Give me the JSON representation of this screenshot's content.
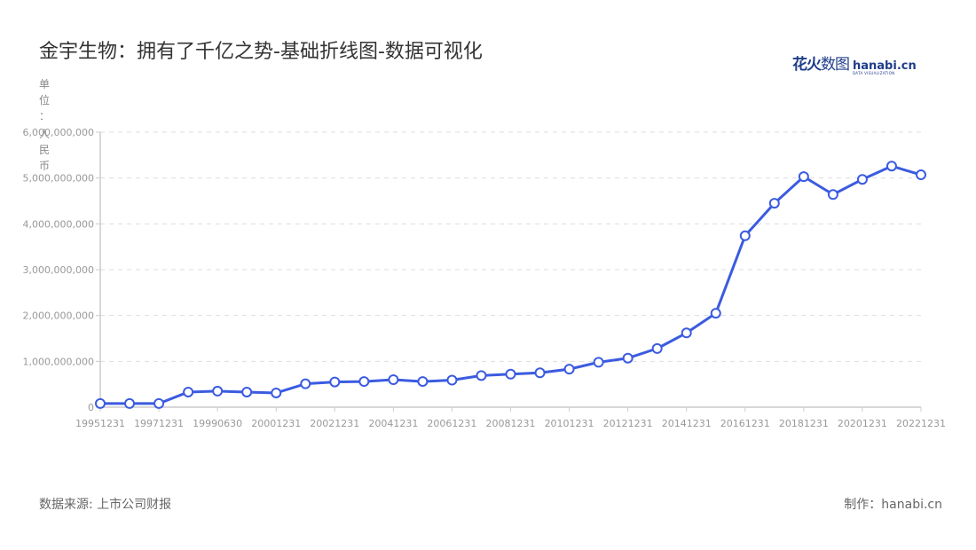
{
  "title": "金宇生物：拥有了千亿之势-基础折线图-数据可视化",
  "logo": {
    "cn_bold": "花火",
    "cn_thin": "数图",
    "en": "hanabi.cn",
    "tagline": "DATA VISUALIZATION"
  },
  "unit_label": [
    "单",
    "位",
    "：",
    "人",
    "民",
    "币"
  ],
  "footer": {
    "source": "数据来源: 上市公司财报",
    "credit": "制作：hanabi.cn"
  },
  "colors": {
    "line": "#3b5be0",
    "grid": "#dddddd",
    "axis": "#cccccc",
    "tick_text": "#999999"
  },
  "chart_data": {
    "type": "line",
    "title": "金宇生物：拥有了千亿之势-基础折线图-数据可视化",
    "xlabel": "",
    "ylabel": "单位：人民币",
    "ylim": [
      0,
      6000000000
    ],
    "yticks": [
      "0",
      "1,000,000,000",
      "2,000,000,000",
      "3,000,000,000",
      "4,000,000,000",
      "5,000,000,000",
      "6,000,000,000"
    ],
    "grid": true,
    "legend": "none",
    "x_tick_labels": [
      "19951231",
      "19971231",
      "19990630",
      "20001231",
      "20021231",
      "20041231",
      "20061231",
      "20081231",
      "20101231",
      "20121231",
      "20141231",
      "20161231",
      "20181231",
      "20201231",
      "20221231"
    ],
    "series": [
      {
        "name": "金宇生物",
        "values": [
          80000000,
          80000000,
          80000000,
          330000000,
          350000000,
          330000000,
          310000000,
          510000000,
          550000000,
          560000000,
          600000000,
          560000000,
          590000000,
          690000000,
          720000000,
          750000000,
          830000000,
          980000000,
          1070000000,
          1280000000,
          1620000000,
          2050000000,
          3740000000,
          4450000000,
          5030000000,
          4640000000,
          4970000000,
          5260000000,
          5070000000
        ]
      }
    ]
  }
}
